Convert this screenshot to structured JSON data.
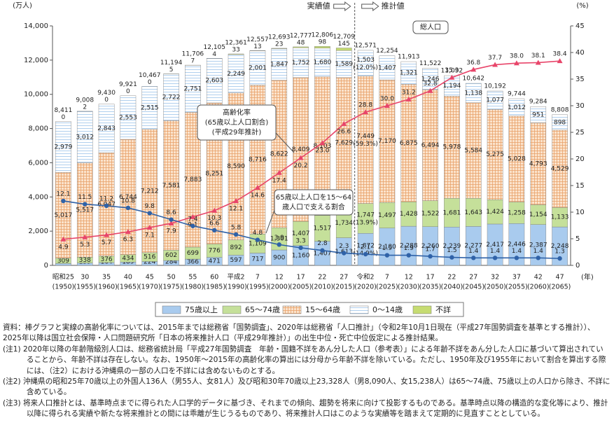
{
  "chart_data": {
    "type": "bar",
    "stacked": true,
    "y_unit": "(万人)",
    "y2_unit": "(%)",
    "x_unit": "(年)",
    "categories": [
      "昭和25",
      "30",
      "35",
      "40",
      "45",
      "50",
      "55",
      "60",
      "平成2",
      "7",
      "12",
      "17",
      "22",
      "27",
      "令和2",
      "7",
      "12",
      "17",
      "22",
      "27",
      "32",
      "37",
      "42",
      "47"
    ],
    "category_years": [
      "(1950)",
      "(1955)",
      "(1960)",
      "(1965)",
      "(1970)",
      "(1975)",
      "(1980)",
      "(1985)",
      "(1990)",
      "(1995)",
      "(2000)",
      "(2005)",
      "(2010)",
      "(2015)",
      "(2020)",
      "(2025)",
      "(2030)",
      "(2035)",
      "(2040)",
      "(2045)",
      "(2050)",
      "(2055)",
      "(2060)",
      "(2065)"
    ],
    "ylim": [
      0,
      14000
    ],
    "yticks": [
      0,
      {
        "value": 2000,
        "label": "2,000"
      },
      {
        "value": 4000,
        "label": "4,000"
      },
      {
        "value": 6000,
        "label": "6,000"
      },
      {
        "value": 8000,
        "label": "8,000"
      },
      {
        "value": 10000,
        "label": "10,000"
      },
      {
        "value": 12000,
        "label": "12,000"
      },
      {
        "value": 14000,
        "label": "14,000"
      }
    ],
    "y2lim": [
      0,
      45
    ],
    "y2ticks": [
      0,
      5,
      10,
      15,
      20,
      25,
      30,
      35,
      40,
      45
    ],
    "series": [
      {
        "name": "75歳以上",
        "color": "#a9cbee",
        "values": [
          107,
          139,
          164,
          189,
          224,
          284,
          366,
          471,
          597,
          717,
          900,
          1160,
          1407,
          1613,
          1872,
          2180,
          2288,
          2260,
          2239,
          2277,
          2417,
          2446,
          2387,
          2248
        ],
        "value_labels": [
          "107",
          "139",
          "164",
          "189",
          "224",
          "284",
          "366",
          "471",
          "597",
          "717",
          "900",
          "1,160",
          "1,407",
          "1,613",
          "1,872",
          "2,180",
          "2,288",
          "2,260",
          "2,239",
          "2,277",
          "2,417",
          "2,446",
          "2,387",
          "2,248"
        ],
        "share_labels": [
          null,
          null,
          null,
          null,
          null,
          null,
          null,
          null,
          null,
          null,
          null,
          null,
          null,
          null,
          "(14.9%)",
          null,
          null,
          null,
          null,
          null,
          null,
          null,
          null,
          null
        ]
      },
      {
        "name": "65～74歳",
        "color": "#c5e09a",
        "values": [
          309,
          338,
          376,
          434,
          516,
          602,
          699,
          776,
          892,
          1109,
          1301,
          1407,
          1517,
          1734,
          1747,
          1497,
          1428,
          1522,
          1681,
          1643,
          1424,
          1258,
          1154,
          1133
        ],
        "value_labels": [
          "309",
          "338",
          "376",
          "434",
          "516",
          "602",
          "699",
          "776",
          "892",
          "1,109",
          "1,301",
          "1,407",
          "1,517",
          "1,734",
          "1,747",
          "1,497",
          "1,428",
          "1,522",
          "1,681",
          "1,643",
          "1,424",
          "1,258",
          "1,154",
          "1,133"
        ],
        "share_labels": [
          null,
          null,
          null,
          null,
          null,
          null,
          null,
          null,
          null,
          null,
          null,
          null,
          null,
          null,
          "(13.9%)",
          null,
          null,
          null,
          null,
          null,
          null,
          null,
          null,
          null
        ]
      },
      {
        "name": "15～64歳",
        "color": "#fbe3cc",
        "pattern": "grid",
        "pattern_color": "#e9a26a",
        "values": [
          5017,
          5517,
          6047,
          6744,
          7212,
          7581,
          7883,
          8251,
          8590,
          8716,
          8622,
          8409,
          8103,
          7629,
          7449,
          7170,
          6875,
          6494,
          5978,
          5584,
          5275,
          5028,
          4793,
          4529
        ],
        "value_labels": [
          "5,017",
          "5,517",
          "6,047",
          "6,744",
          "7,212",
          "7,581",
          "7,883",
          "8,251",
          "8,590",
          "8,716",
          "8,622",
          "8,409",
          "8,103",
          "7,629",
          "7,449",
          "7,170",
          "6,875",
          "6,494",
          "5,978",
          "5,584",
          "5,275",
          "5,028",
          "4,793",
          "4,529"
        ],
        "share_labels": [
          null,
          null,
          null,
          null,
          null,
          null,
          null,
          null,
          null,
          null,
          null,
          null,
          null,
          null,
          "(59.3%)",
          null,
          null,
          null,
          null,
          null,
          null,
          null,
          null,
          null
        ]
      },
      {
        "name": "0～14歳",
        "color": "#ffffff",
        "pattern": "hlines",
        "pattern_color": "#9cc4ea",
        "values": [
          2979,
          3012,
          2843,
          2553,
          2515,
          2722,
          2751,
          2603,
          2249,
          2001,
          1847,
          1752,
          1680,
          1589,
          1503,
          1407,
          1321,
          1246,
          1194,
          1138,
          1077,
          1012,
          951,
          898
        ],
        "value_labels": [
          "2,979",
          "3,012",
          "2,843",
          "2,553",
          "2,515",
          "2,722",
          "2,751",
          "2,603",
          "2,249",
          "2,001",
          "1,847",
          "1,752",
          "1,680",
          "1,589",
          "1,503",
          "1,407",
          "1,321",
          "1,246",
          "1,194",
          "1,138",
          "1,077",
          "1,012",
          "951",
          "898"
        ],
        "share_labels": [
          null,
          null,
          null,
          null,
          null,
          null,
          null,
          null,
          null,
          null,
          null,
          null,
          null,
          null,
          "(12.0%)",
          null,
          null,
          null,
          null,
          null,
          null,
          null,
          null,
          null
        ]
      },
      {
        "name": "不詳",
        "color": "#c6dc72",
        "label_position": "top",
        "values": [
          0,
          2,
          0,
          0,
          0,
          5,
          7,
          4,
          33,
          13,
          23,
          48,
          98,
          145,
          null,
          null,
          null,
          null,
          null,
          null,
          null,
          null,
          null,
          null
        ]
      }
    ],
    "totals": {
      "name": "総人口",
      "values": [
        8411,
        9008,
        9430,
        9921,
        10467,
        11194,
        11706,
        12105,
        12361,
        12557,
        12693,
        12777,
        12806,
        12709,
        12571,
        12254,
        11913,
        11522,
        11092,
        10642,
        10192,
        9744,
        9284,
        8808
      ],
      "value_labels": [
        "8,411",
        "9,008",
        "9,430",
        "9,921",
        "10,467",
        "11,194",
        "11,706",
        "12,105",
        "12,361",
        "12,557",
        "12,693",
        "12,777",
        "12,806",
        "12,709",
        "12,571",
        "12,254",
        "11,913",
        "11,522",
        "11,092",
        "10,642",
        "10,192",
        "9,744",
        "9,284",
        "8,808"
      ]
    },
    "lines": [
      {
        "name": "高齢化率",
        "axis": "y2",
        "color": "#e8456a",
        "marker": "triangle",
        "values": [
          4.9,
          5.3,
          5.7,
          6.3,
          7.1,
          7.9,
          9.1,
          10.3,
          12.1,
          14.6,
          17.4,
          20.2,
          23.0,
          26.6,
          28.8,
          30.0,
          31.2,
          32.8,
          35.3,
          36.8,
          37.7,
          38.0,
          38.1,
          38.4
        ],
        "value_labels": [
          "4.9",
          "5.3",
          "5.7",
          "6.3",
          "7.1",
          "7.9",
          "9.1",
          "10.3",
          "12.1",
          "14.6",
          "17.4",
          "20.2",
          "23.0",
          "26.6",
          "28.8",
          "30.0",
          "31.2",
          "32.8",
          "35.3",
          "36.8",
          "37.7",
          "38.0",
          "38.1",
          "38.4"
        ]
      },
      {
        "name": "65歳以上人口を15～64歳人口で支える割合",
        "axis": "y2",
        "color": "#2f62a8",
        "marker": "circle",
        "values": [
          12.1,
          11.5,
          11.2,
          10.8,
          9.8,
          8.6,
          7.4,
          6.6,
          5.8,
          4.8,
          3.9,
          3.3,
          2.8,
          2.3,
          2.1,
          1.9,
          1.9,
          1.7,
          1.5,
          1.4,
          1.4,
          1.4,
          1.4,
          1.3
        ]
      }
    ],
    "period_labels": [
      "実績値",
      "推計値"
    ],
    "callouts": [
      {
        "lines": [
          "総人口"
        ]
      },
      {
        "lines": [
          "高齢化率",
          "(65歳以上人口割合)",
          "(平成29年推計)"
        ]
      },
      {
        "lines": [
          "65歳以上人口を15～64",
          "歳人口で支える割合"
        ]
      }
    ]
  },
  "notes": [
    "資料：棒グラフと実線の高齢化率については、2015年までは総務省「国勢調査」、2020年は総務省「人口推計」（令和2年10月1日現在（平成27年国勢調査を基準とする推計））、2025年以降は国立社会保障・人口問題研究所「日本の将来推計人口（平成29年推計）」の出生中位・死亡中位仮定による推計結果。",
    "(注1) 2020年以降の年齢階級別人口は、総務省統計局「平成27年国勢調査　年齢・国籍不詳をあん分した人口（参考表）」による年齢不詳をあん分した人口に基づいて算出されていることから、年齢不詳は存在しない。なお、1950年～2015年の高齢化率の算出には分母から年齢不詳を除いている。ただし、1950年及び1955年において割合を算出する際には、（注2）における沖縄県の一部の人口を不詳には含めないものとする。",
    "(注2) 沖縄県の昭和25年70歳以上の外国人136人（男55人、女81人）及び昭和30年70歳以上23,328人（男8,090人、女15,238人）は65～74歳、75歳以上の人口から除き、不詳に含めている。",
    "(注3) 将来人口推計とは、基準時点までに得られた人口学的データに基づき、それまでの傾向、趨勢を将来に向けて投影するものである。基準時点以降の構造的な変化等により、推計以降に得られる実績や新たな将来推計との間には乖離が生じうるものであり、将来推計人口はこのような実績等を踏まえて定期的に見直すこととしている。"
  ]
}
